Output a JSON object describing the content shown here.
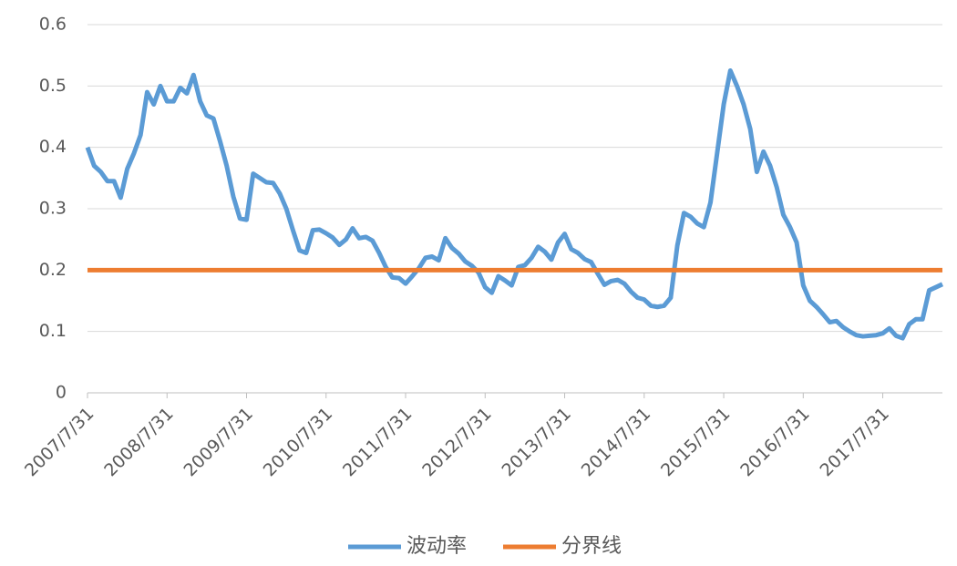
{
  "chart_data": {
    "type": "line",
    "categories": [
      "2007/7/31",
      null,
      null,
      null,
      null,
      null,
      null,
      null,
      null,
      null,
      null,
      null,
      "2008/7/31",
      null,
      null,
      null,
      null,
      null,
      null,
      null,
      null,
      null,
      null,
      null,
      "2009/7/31",
      null,
      null,
      null,
      null,
      null,
      null,
      null,
      null,
      null,
      null,
      null,
      "2010/7/31",
      null,
      null,
      null,
      null,
      null,
      null,
      null,
      null,
      null,
      null,
      null,
      "2011/7/31",
      null,
      null,
      null,
      null,
      null,
      null,
      null,
      null,
      null,
      null,
      null,
      "2012/7/31",
      null,
      null,
      null,
      null,
      null,
      null,
      null,
      null,
      null,
      null,
      null,
      "2013/7/31",
      null,
      null,
      null,
      null,
      null,
      null,
      null,
      null,
      null,
      null,
      null,
      "2014/7/31",
      null,
      null,
      null,
      null,
      null,
      null,
      null,
      null,
      null,
      null,
      null,
      "2015/7/31",
      null,
      null,
      null,
      null,
      null,
      null,
      null,
      null,
      null,
      null,
      null,
      "2016/7/31",
      null,
      null,
      null,
      null,
      null,
      null,
      null,
      null,
      null,
      null,
      null,
      "2017/7/31",
      null,
      null,
      null,
      null,
      null,
      null,
      null,
      null,
      null
    ],
    "series": [
      {
        "name": "波动率",
        "color": "#5b9bd5",
        "values": [
          0.4,
          0.37,
          0.36,
          0.345,
          0.345,
          0.318,
          0.365,
          0.39,
          0.42,
          0.49,
          0.47,
          0.5,
          0.475,
          0.475,
          0.497,
          0.488,
          0.518,
          0.475,
          0.452,
          0.447,
          0.41,
          0.37,
          0.32,
          0.284,
          0.282,
          0.357,
          0.35,
          0.343,
          0.342,
          0.325,
          0.3,
          0.265,
          0.232,
          0.228,
          0.265,
          0.266,
          0.26,
          0.253,
          0.241,
          0.25,
          0.268,
          0.252,
          0.254,
          0.248,
          0.228,
          0.205,
          0.188,
          0.187,
          0.178,
          0.19,
          0.203,
          0.22,
          0.222,
          0.216,
          0.252,
          0.236,
          0.227,
          0.214,
          0.207,
          0.196,
          0.172,
          0.163,
          0.19,
          0.183,
          0.175,
          0.205,
          0.208,
          0.22,
          0.238,
          0.23,
          0.217,
          0.245,
          0.259,
          0.234,
          0.228,
          0.218,
          0.213,
          0.194,
          0.176,
          0.182,
          0.184,
          0.178,
          0.165,
          0.155,
          0.152,
          0.142,
          0.14,
          0.142,
          0.155,
          0.24,
          0.293,
          0.287,
          0.276,
          0.27,
          0.31,
          0.39,
          0.47,
          0.525,
          0.5,
          0.47,
          0.43,
          0.36,
          0.393,
          0.37,
          0.335,
          0.29,
          0.27,
          0.245,
          0.175,
          0.15,
          0.14,
          0.128,
          0.115,
          0.117,
          0.107,
          0.1,
          0.094,
          0.092,
          0.093,
          0.094,
          0.097,
          0.105,
          0.093,
          0.089,
          0.112,
          0.12,
          0.12,
          0.167,
          0.172,
          0.177
        ]
      },
      {
        "name": "分界线",
        "color": "#ed7d31",
        "values": [
          0.2,
          0.2,
          0.2,
          0.2,
          0.2,
          0.2,
          0.2,
          0.2,
          0.2,
          0.2,
          0.2,
          0.2,
          0.2,
          0.2,
          0.2,
          0.2,
          0.2,
          0.2,
          0.2,
          0.2,
          0.2,
          0.2,
          0.2,
          0.2,
          0.2,
          0.2,
          0.2,
          0.2,
          0.2,
          0.2,
          0.2,
          0.2,
          0.2,
          0.2,
          0.2,
          0.2,
          0.2,
          0.2,
          0.2,
          0.2,
          0.2,
          0.2,
          0.2,
          0.2,
          0.2,
          0.2,
          0.2,
          0.2,
          0.2,
          0.2,
          0.2,
          0.2,
          0.2,
          0.2,
          0.2,
          0.2,
          0.2,
          0.2,
          0.2,
          0.2,
          0.2,
          0.2,
          0.2,
          0.2,
          0.2,
          0.2,
          0.2,
          0.2,
          0.2,
          0.2,
          0.2,
          0.2,
          0.2,
          0.2,
          0.2,
          0.2,
          0.2,
          0.2,
          0.2,
          0.2,
          0.2,
          0.2,
          0.2,
          0.2,
          0.2,
          0.2,
          0.2,
          0.2,
          0.2,
          0.2,
          0.2,
          0.2,
          0.2,
          0.2,
          0.2,
          0.2,
          0.2,
          0.2,
          0.2,
          0.2,
          0.2,
          0.2,
          0.2,
          0.2,
          0.2,
          0.2,
          0.2,
          0.2,
          0.2,
          0.2,
          0.2,
          0.2,
          0.2,
          0.2,
          0.2,
          0.2,
          0.2,
          0.2,
          0.2,
          0.2,
          0.2,
          0.2,
          0.2,
          0.2,
          0.2,
          0.2,
          0.2,
          0.2,
          0.2,
          0.2
        ]
      }
    ],
    "ylim": [
      0,
      0.6
    ],
    "yticks": [
      0,
      0.1,
      0.2,
      0.3,
      0.4,
      0.5,
      0.6
    ],
    "grid": true,
    "legend": "bottom"
  }
}
